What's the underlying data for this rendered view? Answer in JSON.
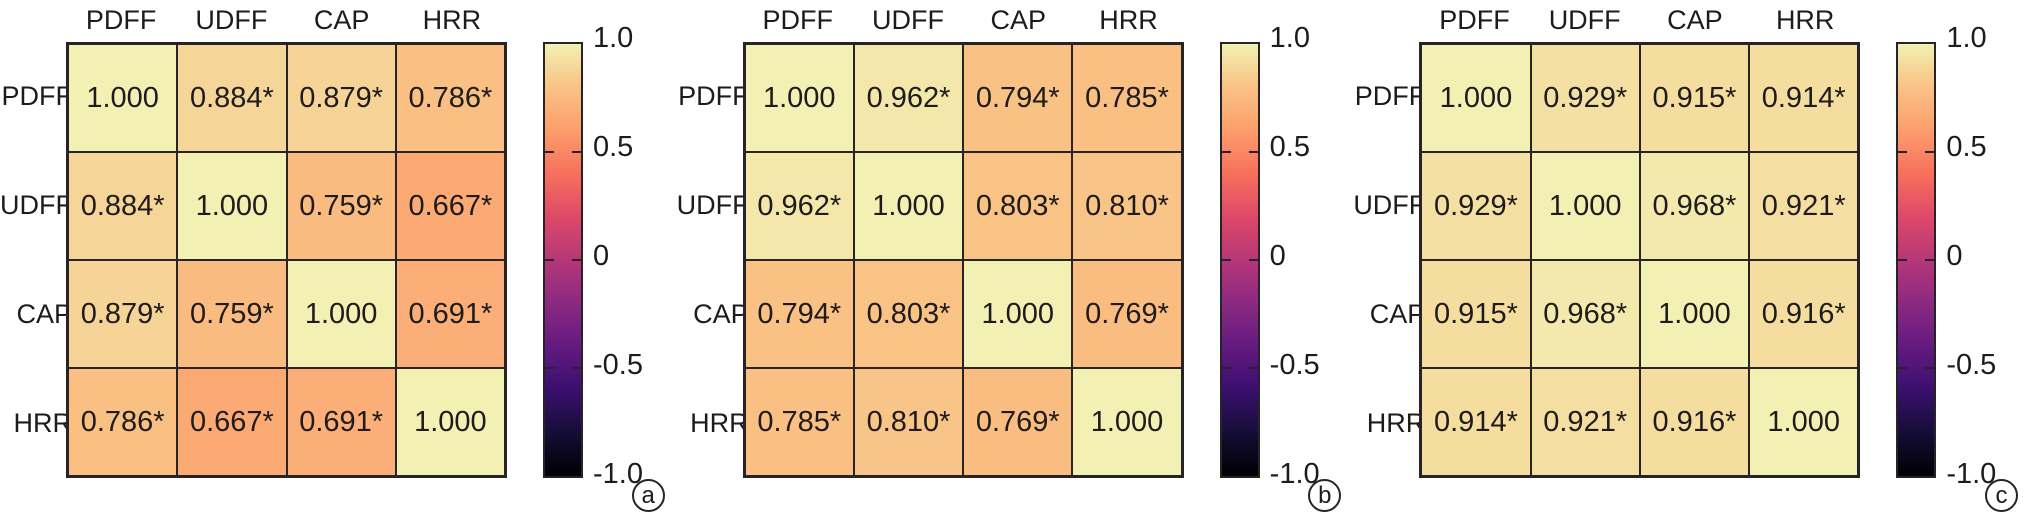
{
  "figure": {
    "description": "Three 4x4 correlation matrix heatmaps with shared variable labels and individual colorbars",
    "background": "#ffffff",
    "grid_line_color": "#272326",
    "text_color": "#1e1b1c"
  },
  "colormap": {
    "name": "magma",
    "positions": [
      0,
      0.1,
      0.2,
      0.3,
      0.4,
      0.5,
      0.6,
      0.7,
      0.8,
      0.9,
      1.0
    ],
    "colors": [
      "#000004",
      "#140e36",
      "#3b0f70",
      "#641a80",
      "#8c2981",
      "#b73779",
      "#de4968",
      "#f7705c",
      "#fc9e6c",
      "#f9c285",
      "#f2f0b3"
    ]
  },
  "colorbar": {
    "range": [
      -1,
      1
    ],
    "ticks": [
      {
        "v": 1.0,
        "label": "1.0"
      },
      {
        "v": 0.5,
        "label": "0.5"
      },
      {
        "v": 0.0,
        "label": "0"
      },
      {
        "v": -0.5,
        "label": "-0.5"
      },
      {
        "v": -1.0,
        "label": "-1.0"
      }
    ]
  },
  "chart_data": [
    {
      "type": "heatmap",
      "panel_label": "a",
      "columns": [
        "PDFF",
        "UDFF",
        "CAP",
        "HRR"
      ],
      "rows": [
        "PDFF",
        "UDFF",
        "CAP",
        "HRR"
      ],
      "values": [
        [
          1.0,
          0.884,
          0.879,
          0.786
        ],
        [
          0.884,
          1.0,
          0.759,
          0.667
        ],
        [
          0.879,
          0.759,
          1.0,
          0.691
        ],
        [
          0.786,
          0.667,
          0.691,
          1.0
        ]
      ],
      "cell_labels": [
        [
          "1.000",
          "0.884*",
          "0.879*",
          "0.786*"
        ],
        [
          "0.884*",
          "1.000",
          "0.759*",
          "0.667*"
        ],
        [
          "0.879*",
          "0.759*",
          "1.000",
          "0.691*"
        ],
        [
          "0.786*",
          "0.667*",
          "0.691*",
          "1.000"
        ]
      ],
      "value_range": [
        -1,
        1
      ],
      "colormap": "magma",
      "legend_position": "right-colorbar"
    },
    {
      "type": "heatmap",
      "panel_label": "b",
      "columns": [
        "PDFF",
        "UDFF",
        "CAP",
        "HRR"
      ],
      "rows": [
        "PDFF",
        "UDFF",
        "CAP",
        "HRR"
      ],
      "values": [
        [
          1.0,
          0.962,
          0.794,
          0.785
        ],
        [
          0.962,
          1.0,
          0.803,
          0.81
        ],
        [
          0.794,
          0.803,
          1.0,
          0.769
        ],
        [
          0.785,
          0.81,
          0.769,
          1.0
        ]
      ],
      "cell_labels": [
        [
          "1.000",
          "0.962*",
          "0.794*",
          "0.785*"
        ],
        [
          "0.962*",
          "1.000",
          "0.803*",
          "0.810*"
        ],
        [
          "0.794*",
          "0.803*",
          "1.000",
          "0.769*"
        ],
        [
          "0.785*",
          "0.810*",
          "0.769*",
          "1.000"
        ]
      ],
      "value_range": [
        -1,
        1
      ],
      "colormap": "magma",
      "legend_position": "right-colorbar"
    },
    {
      "type": "heatmap",
      "panel_label": "c",
      "columns": [
        "PDFF",
        "UDFF",
        "CAP",
        "HRR"
      ],
      "rows": [
        "PDFF",
        "UDFF",
        "CAP",
        "HRR"
      ],
      "values": [
        [
          1.0,
          0.929,
          0.915,
          0.914
        ],
        [
          0.929,
          1.0,
          0.968,
          0.921
        ],
        [
          0.915,
          0.968,
          1.0,
          0.916
        ],
        [
          0.914,
          0.921,
          0.916,
          1.0
        ]
      ],
      "cell_labels": [
        [
          "1.000",
          "0.929*",
          "0.915*",
          "0.914*"
        ],
        [
          "0.929*",
          "1.000",
          "0.968*",
          "0.921*"
        ],
        [
          "0.915*",
          "0.968*",
          "1.000",
          "0.916*"
        ],
        [
          "0.914*",
          "0.921*",
          "0.916*",
          "1.000"
        ]
      ],
      "value_range": [
        -1,
        1
      ],
      "colormap": "magma",
      "legend_position": "right-colorbar"
    }
  ]
}
